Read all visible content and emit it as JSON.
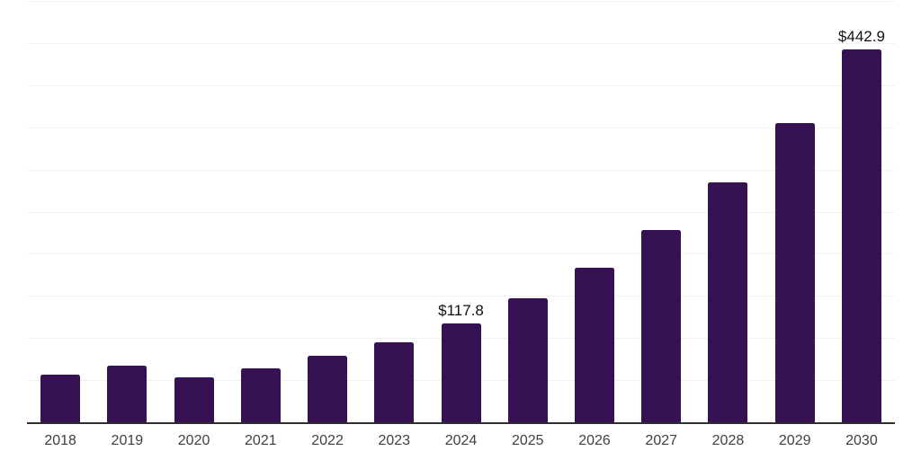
{
  "chart": {
    "title": "",
    "colors": {
      "background": "#ffffff",
      "bar": "#371253",
      "axis_line": "#2e2e2e",
      "gridline": "#f1f1f1",
      "tick_label": "#404040",
      "data_label": "#111111"
    }
  },
  "chart_data": {
    "type": "bar",
    "title": "",
    "xlabel": "",
    "ylabel": "",
    "categories": [
      "2018",
      "2019",
      "2020",
      "2021",
      "2022",
      "2023",
      "2024",
      "2025",
      "2026",
      "2027",
      "2028",
      "2029",
      "2030"
    ],
    "values": [
      57,
      67,
      53,
      64,
      79,
      95,
      117.8,
      146.9,
      183.1,
      228.3,
      284.7,
      355.0,
      442.9
    ],
    "data_labels": {
      "2024": "$117.8",
      "2030": "$442.9"
    },
    "ylim": [
      0,
      500
    ],
    "gridline_step": 50,
    "grid": "horizontal-only",
    "y_tick_labels_shown": false,
    "legend": "none"
  }
}
